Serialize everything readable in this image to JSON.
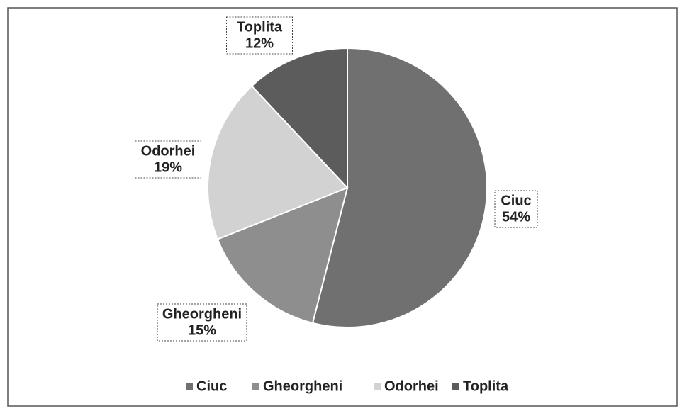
{
  "chart_data": {
    "type": "pie",
    "categories": [
      "Ciuc",
      "Gheorgheni",
      "Odorhei",
      "Toplita"
    ],
    "values": [
      54,
      15,
      19,
      12
    ],
    "value_labels": [
      "54%",
      "15%",
      "19%",
      "12%"
    ],
    "colors": [
      "#707070",
      "#8e8e8e",
      "#d2d2d2",
      "#5c5c5c"
    ],
    "legend": "bottom"
  }
}
